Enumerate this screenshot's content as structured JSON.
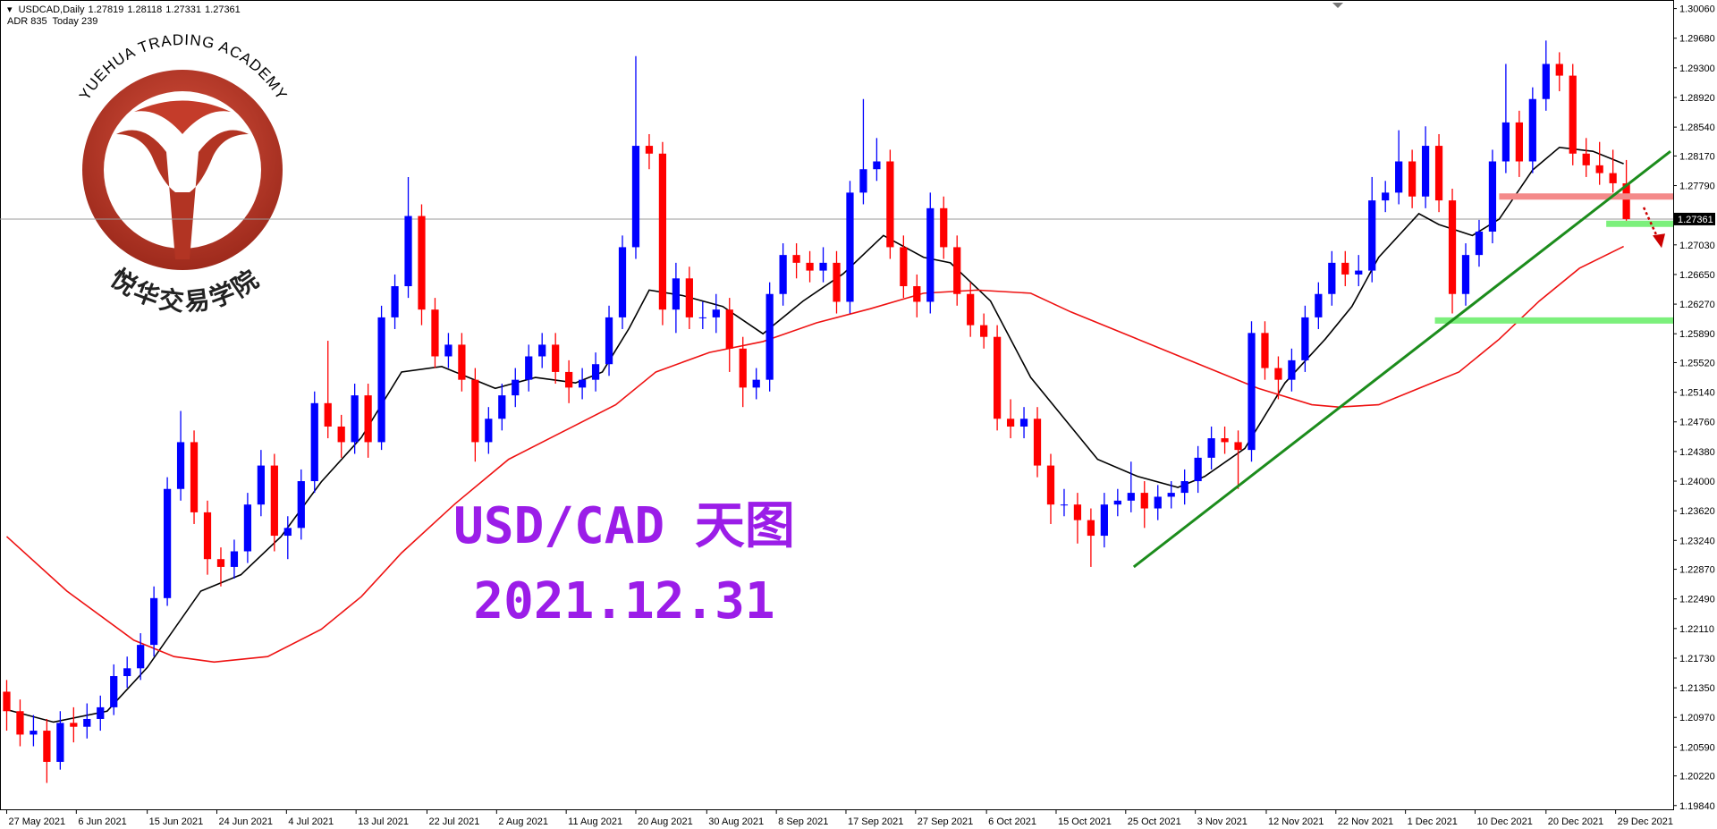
{
  "chart_data": {
    "type": "candlestick",
    "symbol": "USDCAD,Daily",
    "info": "ADR 835  Today 239",
    "watermark": [
      "USD/CAD 天图",
      "2021.12.31"
    ],
    "logo": {
      "arc_text": "YUEHUA TRADING ACADEMY",
      "cn_text": "悦华交易学院"
    },
    "up_color": "#0000ff",
    "down_color": "#ff0000",
    "ylim": [
      1.1978,
      1.3017
    ],
    "xlim": [
      -0.5,
      124.5
    ],
    "yticks": [
      {
        "value": 1.3006,
        "label": "1.30060"
      },
      {
        "value": 1.2968,
        "label": "1.29680"
      },
      {
        "value": 1.293,
        "label": "1.29300"
      },
      {
        "value": 1.2892,
        "label": "1.28920"
      },
      {
        "value": 1.2854,
        "label": "1.28540"
      },
      {
        "value": 1.2817,
        "label": "1.28170"
      },
      {
        "value": 1.2779,
        "label": "1.27790"
      },
      {
        "value": 1.2703,
        "label": "1.27030"
      },
      {
        "value": 1.2665,
        "label": "1.26650"
      },
      {
        "value": 1.2627,
        "label": "1.26270"
      },
      {
        "value": 1.2589,
        "label": "1.25890"
      },
      {
        "value": 1.2552,
        "label": "1.25520"
      },
      {
        "value": 1.2514,
        "label": "1.25140"
      },
      {
        "value": 1.2476,
        "label": "1.24760"
      },
      {
        "value": 1.2438,
        "label": "1.24380"
      },
      {
        "value": 1.24,
        "label": "1.24000"
      },
      {
        "value": 1.2362,
        "label": "1.23620"
      },
      {
        "value": 1.2324,
        "label": "1.23240"
      },
      {
        "value": 1.2287,
        "label": "1.22870"
      },
      {
        "value": 1.2249,
        "label": "1.22490"
      },
      {
        "value": 1.2211,
        "label": "1.22110"
      },
      {
        "value": 1.2173,
        "label": "1.21730"
      },
      {
        "value": 1.2135,
        "label": "1.21350"
      },
      {
        "value": 1.2097,
        "label": "1.20970"
      },
      {
        "value": 1.2059,
        "label": "1.20590"
      },
      {
        "value": 1.2022,
        "label": "1.20220"
      },
      {
        "value": 1.1984,
        "label": "1.19840"
      }
    ],
    "xticks": [
      {
        "value": 0,
        "label": "27 May 2021"
      },
      {
        "value": 5.2,
        "label": "6 Jun 2021"
      },
      {
        "value": 10.5,
        "label": "15 Jun 2021"
      },
      {
        "value": 15.7,
        "label": "24 Jun 2021"
      },
      {
        "value": 20.9,
        "label": "4 Jul 2021"
      },
      {
        "value": 26.1,
        "label": "13 Jul 2021"
      },
      {
        "value": 31.4,
        "label": "22 Jul 2021"
      },
      {
        "value": 36.6,
        "label": "2 Aug 2021"
      },
      {
        "value": 41.8,
        "label": "11 Aug 2021"
      },
      {
        "value": 47,
        "label": "20 Aug 2021"
      },
      {
        "value": 52.3,
        "label": "30 Aug 2021"
      },
      {
        "value": 57.5,
        "label": "8 Sep 2021"
      },
      {
        "value": 62.7,
        "label": "17 Sep 2021"
      },
      {
        "value": 67.9,
        "label": "27 Sep 2021"
      },
      {
        "value": 73.2,
        "label": "6 Oct 2021"
      },
      {
        "value": 78.4,
        "label": "15 Oct 2021"
      },
      {
        "value": 83.6,
        "label": "25 Oct 2021"
      },
      {
        "value": 88.8,
        "label": "3 Nov 2021"
      },
      {
        "value": 94.1,
        "label": "12 Nov 2021"
      },
      {
        "value": 99.3,
        "label": "22 Nov 2021"
      },
      {
        "value": 104.5,
        "label": "1 Dec 2021"
      },
      {
        "value": 109.7,
        "label": "10 Dec 2021"
      },
      {
        "value": 115,
        "label": "20 Dec 2021"
      },
      {
        "value": 120.2,
        "label": "29 Dec 2021"
      }
    ],
    "candles": [
      [
        1.213,
        1.2145,
        1.208,
        1.2105
      ],
      [
        1.2105,
        1.212,
        1.206,
        1.2075
      ],
      [
        1.2075,
        1.21,
        1.206,
        1.208
      ],
      [
        1.208,
        1.2095,
        1.2013,
        1.204
      ],
      [
        1.204,
        1.2105,
        1.203,
        1.209
      ],
      [
        1.209,
        1.211,
        1.2065,
        1.2085
      ],
      [
        1.2085,
        1.2115,
        1.207,
        1.2095
      ],
      [
        1.2095,
        1.2125,
        1.208,
        1.211
      ],
      [
        1.211,
        1.2165,
        1.21,
        1.215
      ],
      [
        1.215,
        1.2175,
        1.2135,
        1.216
      ],
      [
        1.216,
        1.2205,
        1.2145,
        1.219
      ],
      [
        1.219,
        1.2265,
        1.2175,
        1.225
      ],
      [
        1.225,
        1.2405,
        1.224,
        1.239
      ],
      [
        1.239,
        1.249,
        1.2375,
        1.245
      ],
      [
        1.245,
        1.2465,
        1.2345,
        1.236
      ],
      [
        1.236,
        1.2375,
        1.228,
        1.23
      ],
      [
        1.23,
        1.2315,
        1.2265,
        1.229
      ],
      [
        1.229,
        1.2325,
        1.2275,
        1.231
      ],
      [
        1.231,
        1.2385,
        1.2295,
        1.237
      ],
      [
        1.237,
        1.244,
        1.2355,
        1.242
      ],
      [
        1.242,
        1.2435,
        1.231,
        1.233
      ],
      [
        1.233,
        1.2355,
        1.23,
        1.234
      ],
      [
        1.234,
        1.2415,
        1.2325,
        1.24
      ],
      [
        1.24,
        1.2515,
        1.2385,
        1.25
      ],
      [
        1.25,
        1.258,
        1.2455,
        1.247
      ],
      [
        1.247,
        1.2485,
        1.243,
        1.245
      ],
      [
        1.245,
        1.2525,
        1.2435,
        1.251
      ],
      [
        1.251,
        1.2525,
        1.243,
        1.245
      ],
      [
        1.245,
        1.2625,
        1.244,
        1.261
      ],
      [
        1.261,
        1.2665,
        1.2595,
        1.265
      ],
      [
        1.265,
        1.279,
        1.2635,
        1.274
      ],
      [
        1.274,
        1.2755,
        1.26,
        1.262
      ],
      [
        1.262,
        1.2635,
        1.2545,
        1.256
      ],
      [
        1.256,
        1.259,
        1.2545,
        1.2575
      ],
      [
        1.2575,
        1.259,
        1.2515,
        1.253
      ],
      [
        1.253,
        1.2545,
        1.2425,
        1.245
      ],
      [
        1.245,
        1.2495,
        1.2435,
        1.248
      ],
      [
        1.248,
        1.2525,
        1.2465,
        1.251
      ],
      [
        1.251,
        1.2545,
        1.2495,
        1.253
      ],
      [
        1.253,
        1.2575,
        1.2515,
        1.256
      ],
      [
        1.256,
        1.259,
        1.2545,
        1.2575
      ],
      [
        1.2575,
        1.259,
        1.2525,
        1.254
      ],
      [
        1.254,
        1.2555,
        1.25,
        1.252
      ],
      [
        1.252,
        1.2545,
        1.2505,
        1.253
      ],
      [
        1.253,
        1.2565,
        1.2515,
        1.255
      ],
      [
        1.255,
        1.2625,
        1.2535,
        1.261
      ],
      [
        1.261,
        1.2715,
        1.2595,
        1.27
      ],
      [
        1.27,
        1.2945,
        1.2685,
        1.283
      ],
      [
        1.283,
        1.2845,
        1.28,
        1.282
      ],
      [
        1.282,
        1.2835,
        1.26,
        1.262
      ],
      [
        1.262,
        1.268,
        1.259,
        1.266
      ],
      [
        1.266,
        1.2675,
        1.2595,
        1.261
      ],
      [
        1.261,
        1.263,
        1.2595,
        1.261
      ],
      [
        1.261,
        1.264,
        1.259,
        1.262
      ],
      [
        1.262,
        1.2635,
        1.254,
        1.257
      ],
      [
        1.257,
        1.2585,
        1.2495,
        1.252
      ],
      [
        1.252,
        1.2545,
        1.2505,
        1.253
      ],
      [
        1.253,
        1.2655,
        1.2515,
        1.264
      ],
      [
        1.264,
        1.2705,
        1.2625,
        1.269
      ],
      [
        1.269,
        1.2705,
        1.266,
        1.268
      ],
      [
        1.268,
        1.2695,
        1.2655,
        1.267
      ],
      [
        1.267,
        1.27,
        1.2655,
        1.268
      ],
      [
        1.268,
        1.2695,
        1.2615,
        1.263
      ],
      [
        1.263,
        1.2785,
        1.2615,
        1.277
      ],
      [
        1.277,
        1.289,
        1.2755,
        1.28
      ],
      [
        1.28,
        1.284,
        1.2785,
        1.281
      ],
      [
        1.281,
        1.2825,
        1.2685,
        1.27
      ],
      [
        1.27,
        1.2715,
        1.2635,
        1.265
      ],
      [
        1.265,
        1.2665,
        1.261,
        1.263
      ],
      [
        1.263,
        1.277,
        1.2615,
        1.275
      ],
      [
        1.275,
        1.2765,
        1.2685,
        1.27
      ],
      [
        1.27,
        1.2715,
        1.2625,
        1.264
      ],
      [
        1.264,
        1.2655,
        1.2585,
        1.26
      ],
      [
        1.26,
        1.2615,
        1.257,
        1.2585
      ],
      [
        1.2585,
        1.26,
        1.2465,
        1.248
      ],
      [
        1.248,
        1.2505,
        1.2455,
        1.247
      ],
      [
        1.247,
        1.2495,
        1.2455,
        1.248
      ],
      [
        1.248,
        1.2495,
        1.2405,
        1.242
      ],
      [
        1.242,
        1.2435,
        1.2345,
        1.237
      ],
      [
        1.237,
        1.239,
        1.2355,
        1.237
      ],
      [
        1.237,
        1.2385,
        1.232,
        1.235
      ],
      [
        1.235,
        1.2365,
        1.229,
        1.233
      ],
      [
        1.233,
        1.2385,
        1.2315,
        1.237
      ],
      [
        1.237,
        1.239,
        1.2355,
        1.2375
      ],
      [
        1.2375,
        1.2425,
        1.236,
        1.2385
      ],
      [
        1.2385,
        1.24,
        1.234,
        1.2365
      ],
      [
        1.2365,
        1.2395,
        1.235,
        1.238
      ],
      [
        1.238,
        1.24,
        1.2365,
        1.2385
      ],
      [
        1.2385,
        1.2415,
        1.237,
        1.24
      ],
      [
        1.24,
        1.2445,
        1.2385,
        1.243
      ],
      [
        1.243,
        1.247,
        1.2415,
        1.2455
      ],
      [
        1.2455,
        1.247,
        1.2435,
        1.245
      ],
      [
        1.245,
        1.2465,
        1.239,
        1.244
      ],
      [
        1.244,
        1.2605,
        1.2425,
        1.259
      ],
      [
        1.259,
        1.2605,
        1.253,
        1.2545
      ],
      [
        1.2545,
        1.256,
        1.2505,
        1.253
      ],
      [
        1.253,
        1.257,
        1.2515,
        1.2555
      ],
      [
        1.2555,
        1.2625,
        1.254,
        1.261
      ],
      [
        1.261,
        1.2655,
        1.2595,
        1.264
      ],
      [
        1.264,
        1.2695,
        1.2625,
        1.268
      ],
      [
        1.268,
        1.2695,
        1.265,
        1.2665
      ],
      [
        1.2665,
        1.269,
        1.265,
        1.267
      ],
      [
        1.267,
        1.279,
        1.2655,
        1.276
      ],
      [
        1.276,
        1.2785,
        1.2745,
        1.277
      ],
      [
        1.277,
        1.285,
        1.2755,
        1.281
      ],
      [
        1.281,
        1.2825,
        1.275,
        1.2765
      ],
      [
        1.2765,
        1.2855,
        1.275,
        1.283
      ],
      [
        1.283,
        1.2845,
        1.2745,
        1.276
      ],
      [
        1.276,
        1.2775,
        1.2615,
        1.264
      ],
      [
        1.264,
        1.2705,
        1.2625,
        1.269
      ],
      [
        1.269,
        1.2735,
        1.2675,
        1.272
      ],
      [
        1.272,
        1.2825,
        1.2705,
        1.281
      ],
      [
        1.281,
        1.2935,
        1.2795,
        1.286
      ],
      [
        1.286,
        1.2875,
        1.279,
        1.281
      ],
      [
        1.281,
        1.2905,
        1.2795,
        1.289
      ],
      [
        1.289,
        1.2965,
        1.2875,
        1.2935
      ],
      [
        1.2935,
        1.295,
        1.29,
        1.292
      ],
      [
        1.292,
        1.2935,
        1.2805,
        1.282
      ],
      [
        1.282,
        1.284,
        1.279,
        1.2805
      ],
      [
        1.2805,
        1.2835,
        1.278,
        1.2795
      ],
      [
        1.2795,
        1.2825,
        1.277,
        1.2782
      ],
      [
        1.27819,
        1.28118,
        1.27331,
        1.27361
      ]
    ],
    "series": [
      {
        "color": "#000000",
        "x": [
          0,
          3.5,
          7.5,
          10.5,
          14.5,
          17.5,
          20.5,
          23.5,
          26.5,
          29.5,
          32.5,
          34.5,
          36.5,
          39.5,
          42.5,
          44.5,
          46.5,
          48,
          50.5,
          53.5,
          56.5,
          59.5,
          62.5,
          65.5,
          68.5,
          70.5,
          73.5,
          76.5,
          79.5,
          81.5,
          84.5,
          87.5,
          89.5,
          92.5,
          95.5,
          98.5,
          100.5,
          102.5,
          105.5,
          107,
          109.5,
          111.5,
          114,
          116,
          118.5,
          120.8
        ],
        "values": [
          1.2107,
          1.2091,
          1.2105,
          1.2161,
          1.2259,
          1.228,
          1.2329,
          1.2399,
          1.2456,
          1.254,
          1.2547,
          1.2533,
          1.2519,
          1.2533,
          1.2526,
          1.254,
          1.2596,
          1.2645,
          1.2638,
          1.2624,
          1.2589,
          1.2631,
          1.2666,
          1.2715,
          1.2687,
          1.268,
          1.2631,
          1.2533,
          1.247,
          1.2428,
          1.2406,
          1.2392,
          1.2406,
          1.2442,
          1.2526,
          1.2582,
          1.2624,
          1.2687,
          1.2743,
          1.2729,
          1.2715,
          1.2736,
          1.2799,
          1.2828,
          1.2823,
          1.2807
        ]
      },
      {
        "color": "#ee1111",
        "x": [
          0,
          4.5,
          9.5,
          12.5,
          15.5,
          19.5,
          23.5,
          26.5,
          29.5,
          33.5,
          37.5,
          41.5,
          45.5,
          48.5,
          52.5,
          56.5,
          60.5,
          64.5,
          68.5,
          72.5,
          76.5,
          79.5,
          84.5,
          89.5,
          93.5,
          97.5,
          99.5,
          102.5,
          105.5,
          108.5,
          111.5,
          114.5,
          117.5,
          120.8
        ],
        "values": [
          1.2329,
          1.2259,
          1.2196,
          1.2175,
          1.2168,
          1.2175,
          1.221,
          1.2252,
          1.2308,
          1.2371,
          1.2428,
          1.2463,
          1.2498,
          1.254,
          1.2565,
          1.2579,
          1.2603,
          1.2621,
          1.2641,
          1.2645,
          1.2641,
          1.2617,
          1.2582,
          1.2547,
          1.2519,
          1.2498,
          1.2495,
          1.2498,
          1.2519,
          1.254,
          1.2582,
          1.2631,
          1.2673,
          1.2701
        ]
      }
    ],
    "levels": [
      {
        "value": 1.2765,
        "start": 111.5,
        "color": "#f48a8a"
      },
      {
        "value": 1.273,
        "start": 119.5,
        "color": "#7cf07c"
      },
      {
        "value": 1.2606,
        "start": 106.7,
        "color": "#7cf07c"
      }
    ],
    "trendline": {
      "color": "#1c8c1c",
      "x": [
        84.2,
        124.3
      ],
      "values": [
        1.229,
        1.2823
      ]
    },
    "arrow": {
      "color": "#cc0000",
      "x": [
        122.3,
        123.5
      ],
      "values": [
        1.2751,
        1.2706
      ]
    }
  }
}
